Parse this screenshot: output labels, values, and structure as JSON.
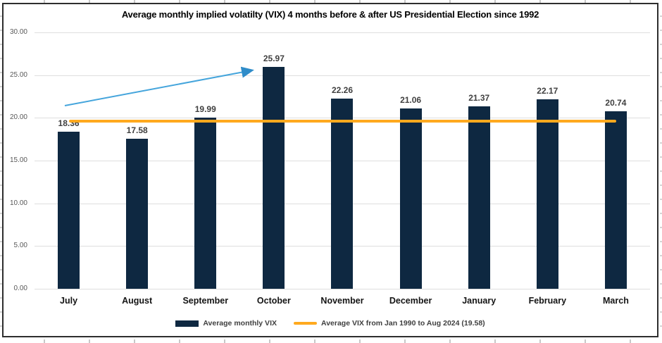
{
  "chart_data": {
    "type": "bar",
    "title": "Average monthly implied volatilty (VIX) 4 months before & after US Presidential Election since 1992",
    "categories": [
      "July",
      "August",
      "September",
      "October",
      "November",
      "December",
      "January",
      "February",
      "March"
    ],
    "series": [
      {
        "name": "Average monthly VIX",
        "values": [
          18.36,
          17.58,
          19.99,
          25.97,
          22.26,
          21.06,
          21.37,
          22.17,
          20.74
        ]
      }
    ],
    "value_labels": [
      "18.36",
      "17.58",
      "19.99",
      "25.97",
      "22.26",
      "21.06",
      "21.37",
      "22.17",
      "20.74"
    ],
    "reference_line": {
      "label": "Average VIX from Jan 1990 to Aug 2024 (19.58)",
      "value": 19.58
    },
    "annotation": {
      "type": "arrow",
      "from_category": "July",
      "to_category": "October"
    },
    "xlabel": "",
    "ylabel": "",
    "ylim": [
      0,
      30
    ],
    "ytick_labels": [
      "30.00",
      "25.00",
      "20.00",
      "15.00",
      "10.00",
      "5.00",
      "0.00"
    ],
    "grid": true,
    "legend_position": "bottom"
  },
  "legend": {
    "items": [
      {
        "label": "Average monthly VIX",
        "swatch": "bar"
      },
      {
        "label": "Average VIX from Jan 1990 to Aug 2024 (19.58)",
        "swatch": "line"
      }
    ]
  },
  "colors": {
    "bar": "#0e2841",
    "reference_line": "#ffa91e",
    "arrow": "#45a5dc",
    "gridline": "#dedede",
    "axis_text": "#595959",
    "data_label": "#404040",
    "frame_border": "#2e2e2e"
  }
}
